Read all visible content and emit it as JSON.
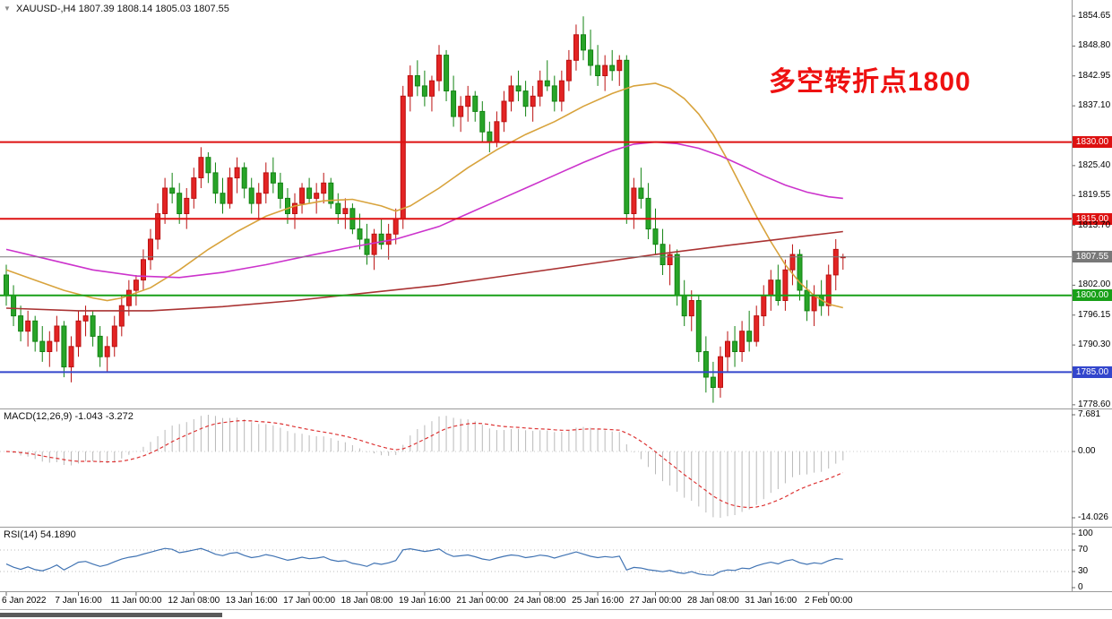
{
  "header": {
    "symbol_info": "XAUUSD-,H4 1807.39 1808.14 1805.03 1807.55"
  },
  "annotation": {
    "text": "多空转折点1800",
    "color": "#ee1111"
  },
  "chart_data": {
    "type": "candlestick",
    "symbol": "XAUUSD-",
    "timeframe": "H4",
    "ohlc": {
      "open": 1807.39,
      "high": 1808.14,
      "low": 1805.03,
      "close": 1807.55
    },
    "y_axis": {
      "max": 1854.65,
      "step": 5.85,
      "visible_ticks": [
        "1854.65",
        "1848.80",
        "1842.95",
        "1837.10",
        "1825.40",
        "1819.55",
        "1813.70",
        "1802.00",
        "1796.15",
        "1790.30",
        "1778.60"
      ]
    },
    "colors": {
      "up": "#e32424",
      "up_border": "#bb1111",
      "down": "#28a428",
      "down_border": "#128312",
      "background": "#ffffff"
    },
    "candles": [
      [
        1804,
        1806,
        1798,
        1800
      ],
      [
        1800,
        1802,
        1794,
        1796
      ],
      [
        1796,
        1798,
        1791,
        1793
      ],
      [
        1793,
        1797,
        1790,
        1795
      ],
      [
        1795,
        1796,
        1789,
        1791
      ],
      [
        1791,
        1794,
        1787,
        1789
      ],
      [
        1789,
        1793,
        1786,
        1791
      ],
      [
        1791,
        1796,
        1789,
        1794
      ],
      [
        1794,
        1795,
        1784,
        1786
      ],
      [
        1786,
        1792,
        1783,
        1790
      ],
      [
        1790,
        1797,
        1788,
        1795
      ],
      [
        1795,
        1798,
        1792,
        1796
      ],
      [
        1796,
        1797,
        1790,
        1792
      ],
      [
        1792,
        1794,
        1786,
        1788
      ],
      [
        1788,
        1792,
        1785,
        1790
      ],
      [
        1790,
        1796,
        1788,
        1794
      ],
      [
        1794,
        1800,
        1792,
        1798
      ],
      [
        1798,
        1803,
        1796,
        1801
      ],
      [
        1801,
        1804,
        1798,
        1803
      ],
      [
        1803,
        1809,
        1801,
        1807
      ],
      [
        1807,
        1813,
        1805,
        1811
      ],
      [
        1811,
        1818,
        1809,
        1816
      ],
      [
        1816,
        1823,
        1814,
        1821
      ],
      [
        1821,
        1824,
        1818,
        1820
      ],
      [
        1820,
        1822,
        1814,
        1816
      ],
      [
        1816,
        1821,
        1813,
        1819
      ],
      [
        1819,
        1825,
        1817,
        1823
      ],
      [
        1823,
        1829,
        1821,
        1827
      ],
      [
        1827,
        1828,
        1822,
        1824
      ],
      [
        1824,
        1826,
        1818,
        1820
      ],
      [
        1820,
        1823,
        1816,
        1818
      ],
      [
        1818,
        1825,
        1817,
        1823
      ],
      [
        1823,
        1827,
        1820,
        1825
      ],
      [
        1825,
        1826,
        1819,
        1821
      ],
      [
        1821,
        1823,
        1816,
        1818
      ],
      [
        1818,
        1822,
        1815,
        1820
      ],
      [
        1820,
        1826,
        1818,
        1824
      ],
      [
        1824,
        1827,
        1820,
        1822
      ],
      [
        1822,
        1824,
        1817,
        1819
      ],
      [
        1819,
        1821,
        1814,
        1816
      ],
      [
        1816,
        1820,
        1813,
        1818
      ],
      [
        1818,
        1822,
        1816,
        1821
      ],
      [
        1821,
        1823,
        1818,
        1819
      ],
      [
        1819,
        1822,
        1816,
        1820
      ],
      [
        1820,
        1824,
        1818,
        1822
      ],
      [
        1822,
        1823,
        1817,
        1818
      ],
      [
        1818,
        1820,
        1814,
        1816
      ],
      [
        1816,
        1819,
        1813,
        1817
      ],
      [
        1817,
        1818,
        1812,
        1813
      ],
      [
        1813,
        1816,
        1809,
        1811
      ],
      [
        1811,
        1814,
        1806,
        1808
      ],
      [
        1808,
        1813,
        1805,
        1812
      ],
      [
        1812,
        1815,
        1809,
        1810
      ],
      [
        1810,
        1814,
        1807,
        1812
      ],
      [
        1812,
        1817,
        1810,
        1815
      ],
      [
        1815,
        1841,
        1813,
        1839
      ],
      [
        1839,
        1845,
        1836,
        1843
      ],
      [
        1843,
        1846,
        1839,
        1841
      ],
      [
        1841,
        1844,
        1837,
        1839
      ],
      [
        1839,
        1843,
        1836,
        1842
      ],
      [
        1842,
        1849,
        1840,
        1847
      ],
      [
        1847,
        1848,
        1838,
        1840
      ],
      [
        1840,
        1843,
        1833,
        1835
      ],
      [
        1835,
        1839,
        1832,
        1837
      ],
      [
        1837,
        1841,
        1834,
        1839
      ],
      [
        1839,
        1840,
        1834,
        1836
      ],
      [
        1836,
        1838,
        1830,
        1832
      ],
      [
        1832,
        1834,
        1828,
        1830
      ],
      [
        1830,
        1836,
        1829,
        1834
      ],
      [
        1834,
        1840,
        1832,
        1838
      ],
      [
        1838,
        1843,
        1836,
        1841
      ],
      [
        1841,
        1844,
        1838,
        1840
      ],
      [
        1840,
        1842,
        1835,
        1837
      ],
      [
        1837,
        1841,
        1834,
        1839
      ],
      [
        1839,
        1844,
        1837,
        1842
      ],
      [
        1842,
        1846,
        1840,
        1841
      ],
      [
        1841,
        1843,
        1836,
        1838
      ],
      [
        1838,
        1844,
        1836,
        1842
      ],
      [
        1842,
        1848,
        1840,
        1846
      ],
      [
        1846,
        1853,
        1844,
        1851
      ],
      [
        1851,
        1854.6,
        1846,
        1848
      ],
      [
        1848,
        1852,
        1843,
        1845
      ],
      [
        1845,
        1849,
        1841,
        1843
      ],
      [
        1843,
        1847,
        1840,
        1845
      ],
      [
        1845,
        1848,
        1842,
        1844
      ],
      [
        1844,
        1847,
        1841,
        1846
      ],
      [
        1846,
        1847,
        1814,
        1816
      ],
      [
        1816,
        1823,
        1813,
        1821
      ],
      [
        1821,
        1825,
        1817,
        1819
      ],
      [
        1819,
        1822,
        1811,
        1813
      ],
      [
        1813,
        1817,
        1808,
        1810
      ],
      [
        1810,
        1813,
        1804,
        1806
      ],
      [
        1806,
        1810,
        1802,
        1808
      ],
      [
        1808,
        1809,
        1798,
        1800
      ],
      [
        1800,
        1803,
        1794,
        1796
      ],
      [
        1796,
        1801,
        1793,
        1799
      ],
      [
        1799,
        1800,
        1787,
        1789
      ],
      [
        1789,
        1792,
        1781,
        1784
      ],
      [
        1784,
        1787,
        1779,
        1782
      ],
      [
        1782,
        1790,
        1780,
        1788
      ],
      [
        1788,
        1793,
        1785,
        1791
      ],
      [
        1791,
        1794,
        1786,
        1789
      ],
      [
        1789,
        1795,
        1787,
        1793
      ],
      [
        1793,
        1797,
        1789,
        1791
      ],
      [
        1791,
        1798,
        1790,
        1796
      ],
      [
        1796,
        1802,
        1794,
        1800
      ],
      [
        1800,
        1805,
        1797,
        1803
      ],
      [
        1803,
        1806,
        1798,
        1799
      ],
      [
        1799,
        1807,
        1797,
        1805
      ],
      [
        1805,
        1810,
        1802,
        1808
      ],
      [
        1808,
        1809,
        1799,
        1801
      ],
      [
        1801,
        1803,
        1795,
        1797
      ],
      [
        1797,
        1802,
        1794,
        1800
      ],
      [
        1800,
        1803,
        1796,
        1798
      ],
      [
        1798,
        1806,
        1796,
        1804
      ],
      [
        1804,
        1811,
        1801,
        1809
      ],
      [
        1807.39,
        1808.14,
        1805.03,
        1807.55
      ]
    ],
    "overlays": [
      {
        "name": "ma-fast-orange",
        "color": "#d8a33c",
        "points": [
          [
            0,
            1805
          ],
          [
            4,
            1803
          ],
          [
            8,
            1801
          ],
          [
            12,
            1799.5
          ],
          [
            14,
            1799
          ],
          [
            16,
            1799.5
          ],
          [
            20,
            1801.5
          ],
          [
            24,
            1805
          ],
          [
            28,
            1809
          ],
          [
            32,
            1812.5
          ],
          [
            36,
            1815.5
          ],
          [
            40,
            1817.5
          ],
          [
            44,
            1818.5
          ],
          [
            48,
            1818.8
          ],
          [
            52,
            1817.5
          ],
          [
            54,
            1816.5
          ],
          [
            56,
            1817.5
          ],
          [
            60,
            1821
          ],
          [
            64,
            1825
          ],
          [
            68,
            1828.5
          ],
          [
            72,
            1831.5
          ],
          [
            76,
            1834
          ],
          [
            80,
            1837
          ],
          [
            84,
            1839.5
          ],
          [
            87,
            1841
          ],
          [
            90,
            1841.5
          ],
          [
            92,
            1840.5
          ],
          [
            94,
            1838.5
          ],
          [
            96,
            1835.5
          ],
          [
            98,
            1831.5
          ],
          [
            100,
            1826.5
          ],
          [
            102,
            1821
          ],
          [
            104,
            1815.5
          ],
          [
            106,
            1810.5
          ],
          [
            108,
            1806
          ],
          [
            110,
            1802.5
          ],
          [
            112,
            1800
          ],
          [
            114,
            1798.3
          ],
          [
            116,
            1797.6
          ]
        ]
      },
      {
        "name": "ma-mid-magenta",
        "color": "#cc33cc",
        "points": [
          [
            0,
            1809
          ],
          [
            6,
            1807
          ],
          [
            12,
            1805
          ],
          [
            18,
            1803.8
          ],
          [
            24,
            1803.5
          ],
          [
            30,
            1804.5
          ],
          [
            36,
            1806
          ],
          [
            42,
            1807.8
          ],
          [
            48,
            1809.5
          ],
          [
            54,
            1811
          ],
          [
            60,
            1813.5
          ],
          [
            64,
            1816
          ],
          [
            68,
            1818.5
          ],
          [
            72,
            1821
          ],
          [
            76,
            1823.5
          ],
          [
            80,
            1826
          ],
          [
            84,
            1828.3
          ],
          [
            87,
            1829.6
          ],
          [
            90,
            1830
          ],
          [
            93,
            1829.7
          ],
          [
            96,
            1828.8
          ],
          [
            99,
            1827.3
          ],
          [
            102,
            1825.4
          ],
          [
            105,
            1823.4
          ],
          [
            108,
            1821.6
          ],
          [
            111,
            1820.2
          ],
          [
            114,
            1819.3
          ],
          [
            116,
            1819
          ]
        ]
      },
      {
        "name": "ma-slow-darkred",
        "color": "#aa3333",
        "points": [
          [
            0,
            1797.5
          ],
          [
            10,
            1797
          ],
          [
            20,
            1797
          ],
          [
            30,
            1797.8
          ],
          [
            40,
            1799
          ],
          [
            50,
            1800.5
          ],
          [
            60,
            1802
          ],
          [
            70,
            1804
          ],
          [
            80,
            1806
          ],
          [
            90,
            1808
          ],
          [
            100,
            1809.8
          ],
          [
            106,
            1810.8
          ],
          [
            110,
            1811.5
          ],
          [
            116,
            1812.5
          ]
        ]
      }
    ],
    "hlines": [
      {
        "price": 1830,
        "label": "1830.00",
        "color": "#dd1111"
      },
      {
        "price": 1815,
        "label": "1815.00",
        "color": "#dd1111"
      },
      {
        "price": 1800,
        "label": "1800.00",
        "color": "#18a018"
      },
      {
        "price": 1785,
        "label": "1785.00",
        "color": "#3346cc"
      }
    ],
    "current_price": {
      "value": 1807.55,
      "label": "1807.55",
      "color": "#787878"
    },
    "time_labels": [
      [
        "6 Jan 2022",
        0
      ],
      [
        "7 Jan 16:00",
        10
      ],
      [
        "11 Jan 00:00",
        18
      ],
      [
        "12 Jan 08:00",
        26
      ],
      [
        "13 Jan 16:00",
        34
      ],
      [
        "17 Jan 00:00",
        42
      ],
      [
        "18 Jan 08:00",
        50
      ],
      [
        "19 Jan 16:00",
        58
      ],
      [
        "21 Jan 00:00",
        66
      ],
      [
        "24 Jan 08:00",
        74
      ],
      [
        "25 Jan 16:00",
        82
      ],
      [
        "27 Jan 00:00",
        90
      ],
      [
        "28 Jan 08:00",
        98
      ],
      [
        "31 Jan 16:00",
        106
      ],
      [
        "2 Feb 00:00",
        114
      ]
    ],
    "macd": {
      "header": "MACD(12,26,9) -1.043 -3.272",
      "fast": 12,
      "slow": 26,
      "signal": 9,
      "axis_labels": [
        "7.681",
        "0.00",
        "-14.026"
      ],
      "histogram_color": "#b9b9b9",
      "signal_color": "#dd3333"
    },
    "rsi": {
      "header": "RSI(14) 54.1890",
      "period": 14,
      "axis_labels": [
        "100",
        "70",
        "30",
        "0"
      ],
      "levels": [
        70,
        30
      ],
      "line_color": "#4073b3"
    }
  }
}
